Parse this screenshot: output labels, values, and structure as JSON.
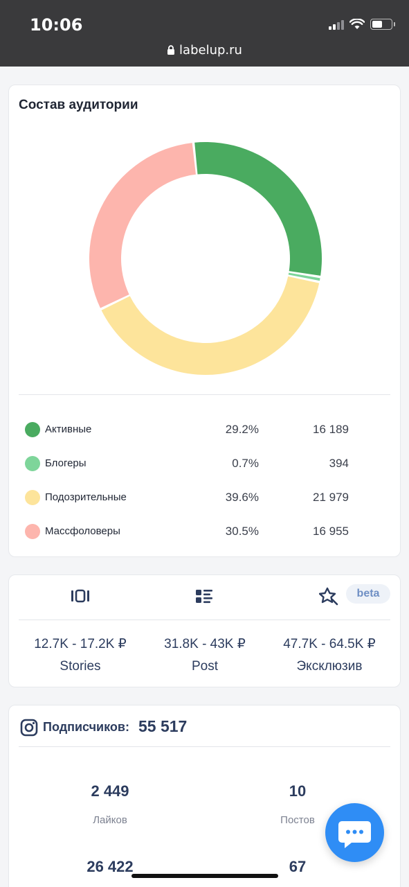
{
  "statusbar": {
    "time": "10:06",
    "url": "labelup.ru"
  },
  "audience": {
    "title": "Состав аудитории",
    "items": [
      {
        "label": "Активные",
        "percent": "29.2%",
        "count": "16 189",
        "value": 29.2,
        "color": "#4aab60"
      },
      {
        "label": "Блогеры",
        "percent": "0.7%",
        "count": "394",
        "value": 0.7,
        "color": "#7ed59a"
      },
      {
        "label": "Подозрительные",
        "percent": "39.6%",
        "count": "21 979",
        "value": 39.6,
        "color": "#fde49b"
      },
      {
        "label": "Массфоловеры",
        "percent": "30.5%",
        "count": "16 955",
        "value": 30.5,
        "color": "#fdb5ad"
      }
    ]
  },
  "pricing": {
    "tabs": [
      {
        "icon": "stories-icon"
      },
      {
        "icon": "post-list-icon"
      },
      {
        "icon": "star-exclusive-icon"
      }
    ],
    "beta_label": "beta",
    "formats": [
      {
        "price": "12.7K - 17.2K ₽",
        "name": "Stories"
      },
      {
        "price": "31.8K - 43K ₽",
        "name": "Post"
      },
      {
        "price": "47.7K - 64.5K ₽",
        "name": "Эксклюзив"
      }
    ]
  },
  "instagram": {
    "icon": "instagram-icon",
    "subscribers_label": "Подписчиков:",
    "subscribers_value": "55 517",
    "stats": [
      {
        "value": "2 449",
        "label": "Лайков"
      },
      {
        "value": "10",
        "label": "Постов"
      },
      {
        "value": "26 422",
        "label": ""
      },
      {
        "value": "67",
        "label": ""
      }
    ]
  },
  "chat": {
    "icon": "chat-bubble-icon"
  }
}
